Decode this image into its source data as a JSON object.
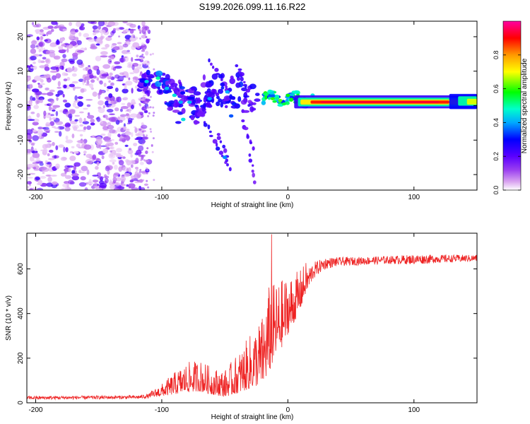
{
  "title": "S199.2026.099.11.16.R22",
  "chart_data": [
    {
      "type": "heatmap",
      "xlabel": "Height of straight line (km)",
      "ylabel": "Frequency (Hz)",
      "xlim": [
        -207,
        150
      ],
      "ylim": [
        -24.5,
        24.5
      ],
      "xticks": [
        -200,
        -100,
        0,
        100
      ],
      "yticks": [
        -20,
        -10,
        0,
        10,
        20
      ],
      "colorbar": {
        "label": "Normalized spectral amplitude",
        "range": [
          0,
          1
        ],
        "ticks": [
          0.0,
          0.2,
          0.4,
          0.6,
          0.8
        ],
        "tick_labels": [
          "0.0",
          "0.2",
          "0.4",
          "0.6",
          "0.8"
        ],
        "colors": [
          "#ffffff",
          "#d9a3f0",
          "#7b00ee",
          "#0000ff",
          "#00ffff",
          "#00ff00",
          "#ffff00",
          "#ff8000",
          "#ff0000",
          "#ff00a0"
        ]
      },
      "regions": [
        {
          "name": "noise",
          "x_range": [
            -207,
            -110
          ],
          "f_range": [
            -24.5,
            24.5
          ],
          "amplitude": 0.1
        },
        {
          "name": "scattered-blobs",
          "x_range": [
            -115,
            -20
          ],
          "amplitude": 0.3
        },
        {
          "name": "tone-forming",
          "x_range": [
            -20,
            20
          ],
          "f_center": 2,
          "amplitude": 0.5
        },
        {
          "name": "tone-carrier",
          "x_range": [
            20,
            150
          ],
          "f_center": 1,
          "amplitude": 0.95
        }
      ]
    },
    {
      "type": "line",
      "xlabel": "Height of straight line (km)",
      "ylabel": "SNR (10 * v/v)",
      "xlim": [
        -207,
        150
      ],
      "ylim": [
        0,
        760
      ],
      "xticks": [
        -200,
        -100,
        0,
        100
      ],
      "yticks": [
        0,
        200,
        400,
        600
      ],
      "series": [
        {
          "name": "SNR",
          "color": "#ee2222",
          "profile_x": [
            -207,
            -120,
            -110,
            -100,
            -90,
            -80,
            -70,
            -60,
            -50,
            -40,
            -30,
            -20,
            -15,
            -10,
            -5,
            0,
            5,
            10,
            15,
            20,
            25,
            30,
            40,
            60,
            80,
            100,
            120,
            150
          ],
          "profile_mean": [
            22,
            25,
            30,
            45,
            65,
            85,
            90,
            70,
            60,
            90,
            130,
            170,
            240,
            300,
            330,
            380,
            420,
            470,
            540,
            590,
            610,
            625,
            632,
            636,
            640,
            642,
            645,
            648
          ],
          "profile_noise": [
            8,
            8,
            10,
            25,
            45,
            60,
            65,
            55,
            55,
            80,
            110,
            140,
            180,
            150,
            140,
            120,
            100,
            80,
            60,
            40,
            30,
            25,
            20,
            18,
            18,
            22,
            18,
            15
          ],
          "peak": {
            "x": -13,
            "y": 755
          }
        }
      ]
    }
  ]
}
